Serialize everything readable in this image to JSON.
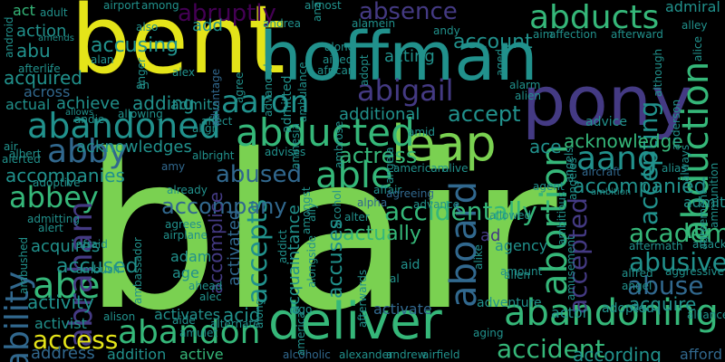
{
  "palette": {
    "yellow": "#e4e419",
    "lime": "#7ad151",
    "green": "#35b779",
    "teal": "#21918c",
    "blue": "#31688e",
    "indigo": "#443a83",
    "purple": "#440154",
    "dark": "#3b1c5a"
  },
  "words": [
    {
      "id": "blair",
      "text": "blair"
    },
    {
      "id": "bent",
      "text": "bent"
    },
    {
      "id": "hoffman",
      "text": "hoffman"
    },
    {
      "id": "pony",
      "text": "pony"
    },
    {
      "id": "deliver",
      "text": "deliver"
    },
    {
      "id": "leap",
      "text": "leap"
    },
    {
      "id": "abducts",
      "text": "abducts"
    },
    {
      "id": "abducted",
      "text": "abducted"
    },
    {
      "id": "abandoned",
      "text": "abandoned"
    },
    {
      "id": "abandon",
      "text": "abandon"
    },
    {
      "id": "abandoning",
      "text": "abandoning"
    },
    {
      "id": "abigail",
      "text": "abigail"
    },
    {
      "id": "aaron",
      "text": "aaron"
    },
    {
      "id": "abby",
      "text": "abby"
    },
    {
      "id": "abbey",
      "text": "abbey"
    },
    {
      "id": "able",
      "text": "able"
    },
    {
      "id": "abe",
      "text": "abe"
    },
    {
      "id": "abraham",
      "text": "abraham"
    },
    {
      "id": "ability",
      "text": "ability"
    },
    {
      "id": "abortion",
      "text": "abortion"
    },
    {
      "id": "abduction",
      "text": "abduction"
    },
    {
      "id": "aboard",
      "text": "aboard"
    },
    {
      "id": "aang",
      "text": "aang"
    },
    {
      "id": "abusive",
      "text": "abusive"
    },
    {
      "id": "abuse",
      "text": "abuse"
    },
    {
      "id": "academy",
      "text": "academy"
    },
    {
      "id": "accident",
      "text": "accident"
    },
    {
      "id": "access",
      "text": "access"
    },
    {
      "id": "abruptly",
      "text": "abruptly"
    },
    {
      "id": "absence",
      "text": "absence"
    },
    {
      "id": "accusing",
      "text": "accusing"
    },
    {
      "id": "account",
      "text": "account"
    },
    {
      "id": "accept",
      "text": "accept"
    },
    {
      "id": "accepting",
      "text": "accepting"
    },
    {
      "id": "accepted",
      "text": "accepted"
    },
    {
      "id": "accepts",
      "text": "accepts"
    },
    {
      "id": "accidentally",
      "text": "accidentally"
    },
    {
      "id": "accompany",
      "text": "accompany"
    },
    {
      "id": "accompanied",
      "text": "accompanied"
    },
    {
      "id": "accompanies",
      "text": "accompanies"
    },
    {
      "id": "acknowledge",
      "text": "acknowledge"
    },
    {
      "id": "acknowledges",
      "text": "acknowledges"
    },
    {
      "id": "abused",
      "text": "abused"
    },
    {
      "id": "actress",
      "text": "actress"
    },
    {
      "id": "accused",
      "text": "accused"
    },
    {
      "id": "acquires",
      "text": "acquires"
    },
    {
      "id": "activity",
      "text": "activity"
    },
    {
      "id": "activist",
      "text": "activist"
    },
    {
      "id": "address",
      "text": "address"
    },
    {
      "id": "addition",
      "text": "addition"
    },
    {
      "id": "active",
      "text": "active"
    },
    {
      "id": "according",
      "text": "according"
    },
    {
      "id": "afford",
      "text": "afford"
    },
    {
      "id": "actually",
      "text": "actually"
    },
    {
      "id": "accuses",
      "text": "accuses"
    },
    {
      "id": "acquaintance",
      "text": "acquaintance"
    },
    {
      "id": "activated",
      "text": "activated"
    },
    {
      "id": "accomplice",
      "text": "accomplice"
    },
    {
      "id": "adam",
      "text": "adam"
    },
    {
      "id": "age",
      "text": "age"
    },
    {
      "id": "acid",
      "text": "acid"
    },
    {
      "id": "activates",
      "text": "activates"
    },
    {
      "id": "activate",
      "text": "activate"
    },
    {
      "id": "adopted",
      "text": "adopted"
    },
    {
      "id": "acquire",
      "text": "acquire"
    },
    {
      "id": "actor",
      "text": "actor"
    },
    {
      "id": "adventure",
      "text": "adventure"
    },
    {
      "id": "agency",
      "text": "agency"
    },
    {
      "id": "ace",
      "text": "ace"
    },
    {
      "id": "actual",
      "text": "actual"
    },
    {
      "id": "achieve",
      "text": "achieve"
    },
    {
      "id": "adding",
      "text": "adding"
    },
    {
      "id": "admits",
      "text": "admits"
    },
    {
      "id": "additional",
      "text": "additional"
    },
    {
      "id": "acquired",
      "text": "acquired"
    },
    {
      "id": "across",
      "text": "across"
    },
    {
      "id": "abu",
      "text": "abu"
    },
    {
      "id": "action",
      "text": "action"
    },
    {
      "id": "act",
      "text": "act"
    },
    {
      "id": "adult",
      "text": "adult"
    },
    {
      "id": "acting",
      "text": "acting"
    },
    {
      "id": "admiral",
      "text": "admiral"
    },
    {
      "id": "alley",
      "text": "alley"
    },
    {
      "id": "affection",
      "text": "affection"
    },
    {
      "id": "afterward",
      "text": "afterward"
    },
    {
      "id": "aim",
      "text": "aim"
    },
    {
      "id": "add",
      "text": "add"
    },
    {
      "id": "afterlife",
      "text": "afterlife"
    },
    {
      "id": "advice",
      "text": "advice"
    },
    {
      "id": "admit",
      "text": "admit"
    },
    {
      "id": "alias",
      "text": "alias"
    },
    {
      "id": "aircraft",
      "text": "aircraft"
    },
    {
      "id": "agent",
      "text": "agent"
    },
    {
      "id": "ambition",
      "text": "ambition"
    },
    {
      "id": "american",
      "text": "american"
    },
    {
      "id": "alive",
      "text": "alive"
    },
    {
      "id": "affair",
      "text": "affair"
    },
    {
      "id": "agreeing",
      "text": "agreeing"
    },
    {
      "id": "aftermath",
      "text": "aftermath"
    },
    {
      "id": "attack",
      "text": "attack"
    },
    {
      "id": "alfred",
      "text": "alfred"
    },
    {
      "id": "aggressive",
      "text": "aggressive"
    },
    {
      "id": "angel",
      "text": "angel"
    },
    {
      "id": "aid",
      "text": "aid"
    },
    {
      "id": "amount",
      "text": "amount"
    },
    {
      "id": "allen",
      "text": "allen"
    },
    {
      "id": "allowed",
      "text": "allowed"
    },
    {
      "id": "alison",
      "text": "alison"
    },
    {
      "id": "aide",
      "text": "aide"
    },
    {
      "id": "alternate",
      "text": "alternate"
    },
    {
      "id": "alcoholic",
      "text": "alcoholic"
    },
    {
      "id": "alexander",
      "text": "alexander"
    },
    {
      "id": "andrew",
      "text": "andrew"
    },
    {
      "id": "airfield",
      "text": "airfield"
    },
    {
      "id": "aging",
      "text": "aging"
    },
    {
      "id": "alliance",
      "text": "alliance"
    },
    {
      "id": "alpha",
      "text": "alpha"
    },
    {
      "id": "alter",
      "text": "alter"
    },
    {
      "id": "alan",
      "text": "alan"
    },
    {
      "id": "also",
      "text": "also"
    },
    {
      "id": "alex",
      "text": "alex"
    },
    {
      "id": "african",
      "text": "african"
    },
    {
      "id": "alone",
      "text": "alone"
    },
    {
      "id": "aided",
      "text": "aided"
    },
    {
      "id": "alamein",
      "text": "alamein"
    },
    {
      "id": "almost",
      "text": "almost"
    },
    {
      "id": "among",
      "text": "among"
    },
    {
      "id": "airport",
      "text": "airport"
    },
    {
      "id": "andrea",
      "text": "andrea"
    },
    {
      "id": "alarm",
      "text": "alarm"
    },
    {
      "id": "alien",
      "text": "alien"
    },
    {
      "id": "amends",
      "text": "amends"
    },
    {
      "id": "air",
      "text": "air"
    },
    {
      "id": "albert",
      "text": "albert"
    },
    {
      "id": "alerted",
      "text": "alerted"
    },
    {
      "id": "adoptive",
      "text": "adoptive"
    },
    {
      "id": "admitting",
      "text": "admitting"
    },
    {
      "id": "alert",
      "text": "alert"
    },
    {
      "id": "afraid",
      "text": "afraid"
    },
    {
      "id": "ambush",
      "text": "ambush"
    },
    {
      "id": "ahead",
      "text": "ahead"
    },
    {
      "id": "alec",
      "text": "alec"
    },
    {
      "id": "albright",
      "text": "albright"
    },
    {
      "id": "align",
      "text": "align"
    },
    {
      "id": "affect",
      "text": "affect"
    },
    {
      "id": "advises",
      "text": "advises"
    },
    {
      "id": "already",
      "text": "already"
    },
    {
      "id": "amy",
      "text": "amy"
    },
    {
      "id": "airplane",
      "text": "airplane"
    },
    {
      "id": "agrees",
      "text": "agrees"
    },
    {
      "id": "amulet",
      "text": "amulet"
    },
    {
      "id": "ago",
      "text": "ago"
    },
    {
      "id": "advance",
      "text": "advance"
    },
    {
      "id": "amid",
      "text": "amid"
    },
    {
      "id": "allowing",
      "text": "allowing"
    },
    {
      "id": "allows",
      "text": "allows"
    },
    {
      "id": "andie",
      "text": "andie"
    },
    {
      "id": "ah",
      "text": "ah"
    },
    {
      "id": "andy",
      "text": "andy"
    },
    {
      "id": "admitted",
      "text": "admitted"
    },
    {
      "id": "advanced",
      "text": "advanced"
    },
    {
      "id": "ambulance",
      "text": "ambulance"
    },
    {
      "id": "adopt",
      "text": "adopt"
    },
    {
      "id": "aged",
      "text": "aged"
    },
    {
      "id": "agree",
      "text": "agree"
    },
    {
      "id": "advantage",
      "text": "advantage"
    },
    {
      "id": "anger",
      "text": "anger"
    },
    {
      "id": "amnesia",
      "text": "amnesia"
    },
    {
      "id": "ambrose",
      "text": "ambrose"
    },
    {
      "id": "angels",
      "text": "angels"
    },
    {
      "id": "angeles",
      "text": "angeles"
    },
    {
      "id": "angela",
      "text": "angela"
    },
    {
      "id": "ambitious",
      "text": "ambitious"
    },
    {
      "id": "amusement",
      "text": "amusement"
    },
    {
      "id": "ambassador",
      "text": "ambassador"
    },
    {
      "id": "ambushed",
      "text": "ambushed"
    },
    {
      "id": "although",
      "text": "although"
    },
    {
      "id": "anderson",
      "text": "anderson"
    },
    {
      "id": "always",
      "text": "always"
    },
    {
      "id": "ammunition",
      "text": "ammunition"
    },
    {
      "id": "agreement",
      "text": "agreement"
    },
    {
      "id": "alice",
      "text": "alice"
    },
    {
      "id": "ana",
      "text": "ana"
    },
    {
      "id": "alcohol",
      "text": "alcohol"
    },
    {
      "id": "ally",
      "text": "ally"
    },
    {
      "id": "amongst",
      "text": "amongst"
    },
    {
      "id": "alongside",
      "text": "alongside"
    },
    {
      "id": "along",
      "text": "along"
    },
    {
      "id": "america",
      "text": "america"
    },
    {
      "id": "afterwards",
      "text": "afterwards"
    },
    {
      "id": "al",
      "text": "al"
    },
    {
      "id": "ad",
      "text": "ad"
    },
    {
      "id": "android",
      "text": "android"
    },
    {
      "id": "addict",
      "text": "addict"
    },
    {
      "id": "alike",
      "text": "alike"
    }
  ]
}
